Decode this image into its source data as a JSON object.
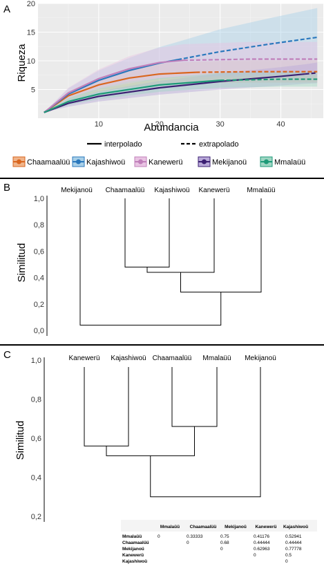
{
  "panels": {
    "a": "A",
    "b": "B",
    "c": "C"
  },
  "chart_data": [
    {
      "type": "line",
      "panel": "A",
      "xlabel": "Abundancia",
      "ylabel": "Riqueza",
      "xlim": [
        0,
        47
      ],
      "ylim": [
        0,
        20
      ],
      "xticks": [
        10,
        20,
        30,
        40
      ],
      "yticks": [
        5,
        10,
        15,
        20
      ],
      "grid": true,
      "line_legend": {
        "solid": "interpolado",
        "dashed": "extrapolado"
      },
      "series": [
        {
          "name": "Chaamaalüü",
          "color": "#d9661f",
          "band": "#f0b48a",
          "interp_end": 26,
          "x": [
            1,
            5,
            10,
            15,
            20,
            26,
            35,
            46
          ],
          "y": [
            1,
            3.9,
            5.8,
            7.0,
            7.7,
            8.0,
            8.1,
            8.1
          ],
          "lo": [
            1,
            3.1,
            4.6,
            5.4,
            5.9,
            6.1,
            6.2,
            6.2
          ],
          "hi": [
            1,
            4.7,
            7.0,
            8.6,
            9.5,
            9.9,
            10.1,
            10.1
          ]
        },
        {
          "name": "Kajashiwoü",
          "color": "#2a78bd",
          "band": "#a9d0e8",
          "interp_end": 23,
          "x": [
            1,
            5,
            10,
            15,
            20,
            23,
            30,
            38,
            46
          ],
          "y": [
            1,
            4.2,
            6.6,
            8.3,
            9.6,
            10.2,
            11.6,
            12.9,
            14.1
          ],
          "lo": [
            1,
            3.2,
            5.0,
            6.1,
            6.8,
            7.1,
            7.4,
            7.6,
            7.7
          ],
          "hi": [
            1,
            5.2,
            8.3,
            10.5,
            12.4,
            13.3,
            15.5,
            17.4,
            19.2
          ]
        },
        {
          "name": "Kanewerü",
          "color": "#c080ba",
          "band": "#e9c3e3",
          "interp_end": 24,
          "x": [
            1,
            5,
            10,
            15,
            20,
            24,
            35,
            46
          ],
          "y": [
            1,
            4.4,
            6.9,
            8.6,
            9.7,
            10.1,
            10.3,
            10.3
          ],
          "lo": [
            1,
            3.5,
            5.3,
            6.4,
            7.0,
            7.2,
            7.3,
            7.3
          ],
          "hi": [
            1,
            5.3,
            8.5,
            10.8,
            12.3,
            12.9,
            13.3,
            13.3
          ]
        },
        {
          "name": "Mekijanoü",
          "color": "#3b1f72",
          "band": "#b9a9d9",
          "interp_end": 44,
          "x": [
            1,
            5,
            10,
            20,
            30,
            40,
            44,
            46
          ],
          "y": [
            1,
            2.6,
            3.8,
            5.3,
            6.4,
            7.3,
            7.7,
            7.9
          ],
          "lo": [
            1,
            2.0,
            2.9,
            4.1,
            5.0,
            5.7,
            6.0,
            6.1
          ],
          "hi": [
            1,
            3.2,
            4.7,
            6.5,
            7.8,
            8.9,
            9.4,
            9.7
          ]
        },
        {
          "name": "Mmalaüü",
          "color": "#1e9a78",
          "band": "#9fd6c3",
          "interp_end": 30,
          "x": [
            1,
            5,
            10,
            20,
            30,
            40,
            46
          ],
          "y": [
            1,
            2.9,
            4.2,
            5.8,
            6.6,
            6.8,
            6.8
          ],
          "lo": [
            1,
            2.3,
            3.3,
            4.6,
            5.3,
            5.5,
            5.5
          ],
          "hi": [
            1,
            3.5,
            5.1,
            7.0,
            7.9,
            8.1,
            8.1
          ]
        }
      ]
    },
    {
      "type": "dendrogram",
      "panel": "B",
      "ylabel": "Similitud",
      "ylim": [
        0,
        1
      ],
      "yticks": [
        "0,0",
        "0,2",
        "0,4",
        "0,6",
        "0,8",
        "1,0"
      ],
      "tick_values": [
        0,
        0.2,
        0.4,
        0.6,
        0.8,
        1.0
      ],
      "leaves": [
        "Mekijanoü",
        "Chaamaalüü",
        "Kajashiwoü",
        "Kanewerü",
        "Mmalaüü"
      ],
      "merges": [
        {
          "left": "Chaamaalüü",
          "right": "Kajashiwoü",
          "height": 0.48
        },
        {
          "left": "m0",
          "right": "Kanewerü",
          "height": 0.44
        },
        {
          "left": "m1",
          "right": "Mmalaüü",
          "height": 0.29
        },
        {
          "left": "Mekijanoü",
          "right": "m2",
          "height": 0.04
        }
      ]
    },
    {
      "type": "dendrogram",
      "panel": "C",
      "ylabel": "Similitud",
      "ylim": [
        0.2,
        1
      ],
      "yticks": [
        "0,2",
        "0,4",
        "0,6",
        "0,8",
        "1,0"
      ],
      "tick_values": [
        0.2,
        0.4,
        0.6,
        0.8,
        1.0
      ],
      "leaves": [
        "Kanewerü",
        "Kajashiwoü",
        "Chaamaalüü",
        "Mmalaüü",
        "Mekijanoü"
      ],
      "merges": [
        {
          "left": "Kanewerü",
          "right": "Kajashiwoü",
          "height": 0.56
        },
        {
          "left": "Chaamaalüü",
          "right": "Mmalaüü",
          "height": 0.66
        },
        {
          "left": "m0",
          "right": "m1",
          "height": 0.51
        },
        {
          "left": "m2",
          "right": "Mekijanoü",
          "height": 0.3
        }
      ]
    },
    {
      "type": "table",
      "panel": "C",
      "columns": [
        "Mmalaüü",
        "Chaamaalüü",
        "Mekijanoü",
        "Kanewerü",
        "Kajashiwoü"
      ],
      "rows": [
        {
          "name": "Mmalaüü",
          "cells": [
            "0",
            "0.33333",
            "0.75",
            "0.41176",
            "0.52941"
          ]
        },
        {
          "name": "Chaamaalüü",
          "cells": [
            "",
            "0",
            "0.68",
            "0.44444",
            "0.44444"
          ]
        },
        {
          "name": "Mekijanoü",
          "cells": [
            "",
            "",
            "0",
            "0.62963",
            "0.77778"
          ]
        },
        {
          "name": "Kanewerü",
          "cells": [
            "",
            "",
            "",
            "0",
            "0.5"
          ]
        },
        {
          "name": "Kajashiwoü",
          "cells": [
            "",
            "",
            "",
            "",
            "0"
          ]
        }
      ]
    }
  ]
}
